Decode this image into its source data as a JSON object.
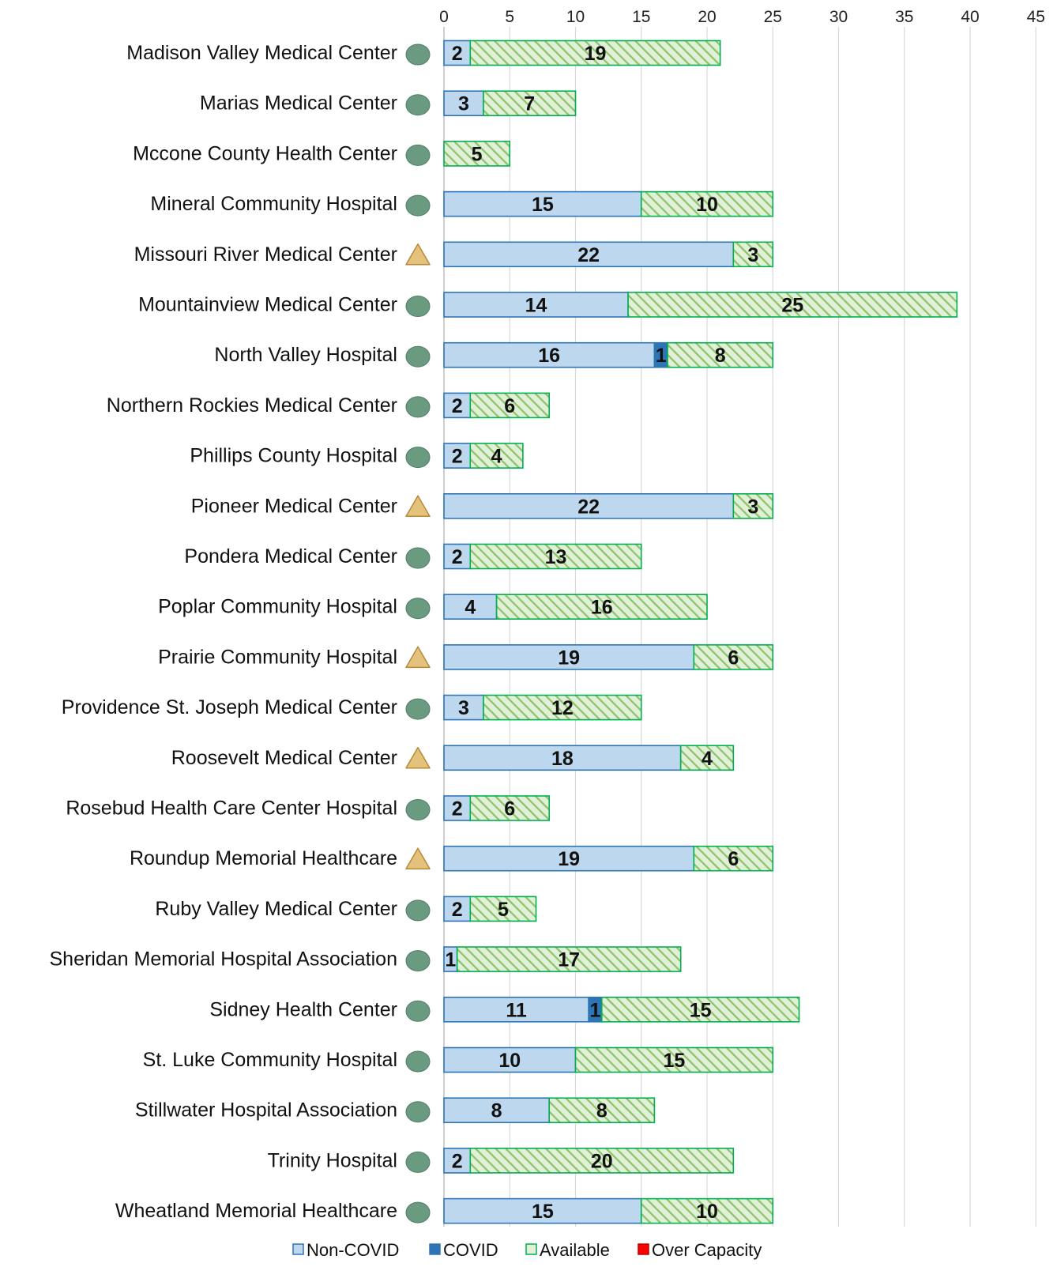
{
  "chart_data": {
    "type": "bar",
    "orientation": "horizontal",
    "stacked": true,
    "title": "",
    "xlim": [
      0,
      45
    ],
    "x_ticks": [
      0,
      5,
      10,
      15,
      20,
      25,
      30,
      35,
      40,
      45
    ],
    "grid": true,
    "legend_position": "bottom",
    "categories": [
      "Madison Valley Medical Center",
      "Marias Medical Center",
      "Mccone County Health Center",
      "Mineral Community Hospital",
      "Missouri River Medical Center",
      "Mountainview Medical Center",
      "North Valley Hospital",
      "Northern Rockies Medical Center",
      "Phillips County Hospital",
      "Pioneer Medical Center",
      "Pondera Medical Center",
      "Poplar Community Hospital",
      "Prairie Community Hospital",
      "Providence St. Joseph Medical Center",
      "Roosevelt  Medical Center",
      "Rosebud Health Care Center Hospital",
      "Roundup Memorial Healthcare",
      "Ruby Valley Medical Center",
      "Sheridan Memorial Hospital Association",
      "Sidney Health Center",
      "St. Luke Community Hospital",
      "Stillwater Hospital Association",
      "Trinity Hospital",
      "Wheatland Memorial Healthcare"
    ],
    "status": [
      "circle",
      "circle",
      "circle",
      "circle",
      "triangle",
      "circle",
      "circle",
      "circle",
      "circle",
      "triangle",
      "circle",
      "circle",
      "triangle",
      "circle",
      "triangle",
      "circle",
      "triangle",
      "circle",
      "circle",
      "circle",
      "circle",
      "circle",
      "circle",
      "circle"
    ],
    "status_colors": {
      "circle": "#6a9a80",
      "triangle": "#e5c27b"
    },
    "series": [
      {
        "name": "Non-COVID",
        "color": "#bdd7ee",
        "stroke": "#2e75b6",
        "pattern": "solid",
        "values": [
          2,
          3,
          0,
          15,
          22,
          14,
          16,
          2,
          2,
          22,
          2,
          4,
          19,
          3,
          18,
          2,
          19,
          2,
          1,
          11,
          10,
          8,
          2,
          15
        ]
      },
      {
        "name": "COVID",
        "color": "#2e75b6",
        "stroke": "#2e75b6",
        "pattern": "solid",
        "values": [
          0,
          0,
          0,
          0,
          0,
          0,
          1,
          0,
          0,
          0,
          0,
          0,
          0,
          0,
          0,
          0,
          0,
          0,
          0,
          1,
          0,
          0,
          0,
          0
        ]
      },
      {
        "name": "Available",
        "color": "#a9d18e",
        "stroke": "#00b050",
        "pattern": "hatch",
        "values": [
          19,
          7,
          5,
          10,
          3,
          25,
          8,
          6,
          4,
          3,
          13,
          16,
          6,
          12,
          4,
          6,
          6,
          5,
          17,
          15,
          15,
          8,
          20,
          10
        ]
      },
      {
        "name": "Over Capacity",
        "color": "#ff0000",
        "stroke": "#c00000",
        "pattern": "solid",
        "values": [
          0,
          0,
          0,
          0,
          0,
          0,
          0,
          0,
          0,
          0,
          0,
          0,
          0,
          0,
          0,
          0,
          0,
          0,
          0,
          0,
          0,
          0,
          0,
          0
        ]
      }
    ]
  }
}
